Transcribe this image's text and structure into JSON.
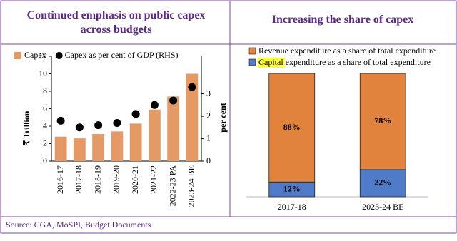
{
  "chart_data": [
    {
      "type": "combo",
      "title": "Continued emphasis on public capex across budgets",
      "categories": [
        "2016-17",
        "2017-18",
        "2018-19",
        "2019-20",
        "2020-21",
        "2021-22",
        "2022-23 PA",
        "2023-24 BE"
      ],
      "series": [
        {
          "name": "Capex",
          "mark": "bar",
          "color": "#e59a66",
          "values": [
            2.8,
            2.6,
            3.1,
            3.4,
            4.3,
            5.9,
            7.4,
            10.0
          ]
        },
        {
          "name": "Capex as per cent of GDP (RHS)",
          "mark": "dot",
          "axis": "y2",
          "color": "#000000",
          "values": [
            1.8,
            1.5,
            1.6,
            1.7,
            2.1,
            2.5,
            2.7,
            3.3
          ]
        }
      ],
      "ylabel": "₹ Trillion",
      "y2label": "per cent",
      "ylim": [
        0,
        12
      ],
      "yticks": [
        0,
        2,
        4,
        6,
        8,
        10,
        12
      ],
      "y2lim": [
        0,
        4.67
      ],
      "y2ticks": [
        0,
        1,
        2,
        3
      ]
    },
    {
      "type": "stacked_bar",
      "title": "Increasing the share of capex",
      "categories": [
        "2017-18",
        "2023-24 BE"
      ],
      "series": [
        {
          "name": "Capital expenditure as a share of total expenditure",
          "color": "#4f7bc8",
          "values": [
            12,
            22
          ],
          "value_labels": [
            "12%",
            "22%"
          ]
        },
        {
          "name": "Revenue expenditure as a share of total expenditure",
          "color": "#e2833d",
          "values": [
            88,
            78
          ],
          "value_labels": [
            "88%",
            "78%"
          ]
        }
      ]
    }
  ],
  "source": "Source: CGA, MoSPI, Budget Documents"
}
